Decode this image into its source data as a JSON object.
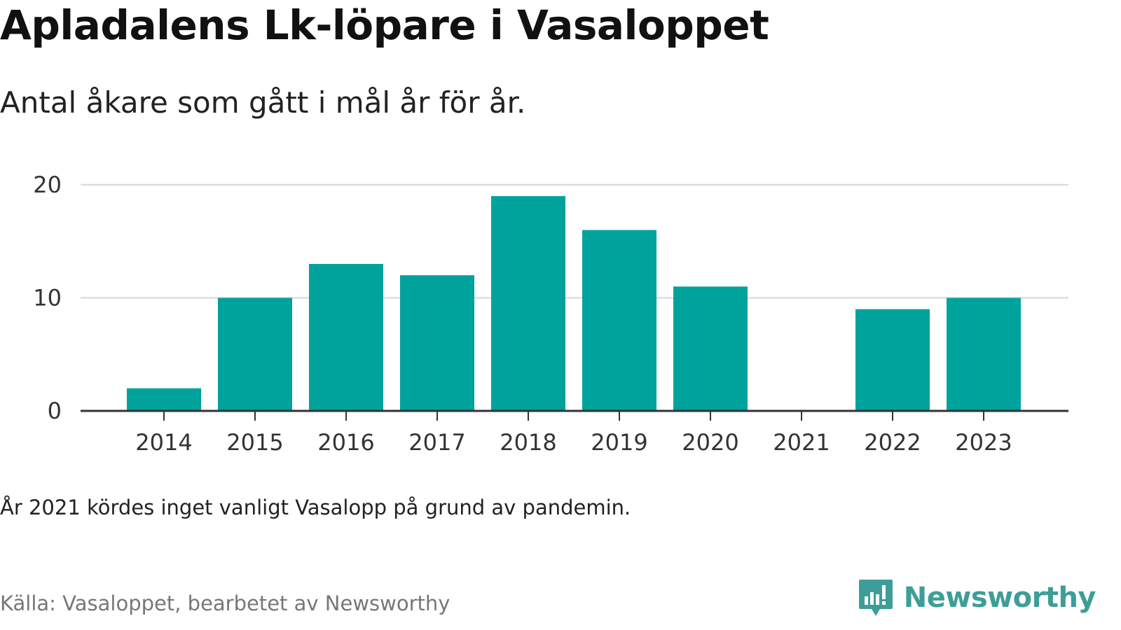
{
  "header": {
    "title": "Apladalens Lk-löpare i Vasaloppet",
    "subtitle": "Antal åkare som gått i mål år för år."
  },
  "footer": {
    "note": "År 2021 kördes inget vanligt Vasalopp på grund av pandemin.",
    "source": "Källa: Vasaloppet, bearbetet av Newsworthy",
    "brand": "Newsworthy",
    "brand_icon": "bar-chart-speech-bubble-icon"
  },
  "colors": {
    "bar": "#00a39b",
    "grid": "#dddddd",
    "axis": "#333333",
    "brand": "#3d9e98"
  },
  "chart_data": {
    "type": "bar",
    "categories": [
      "2014",
      "2015",
      "2016",
      "2017",
      "2018",
      "2019",
      "2020",
      "2021",
      "2022",
      "2023"
    ],
    "values": [
      2,
      10,
      13,
      12,
      19,
      16,
      11,
      0,
      9,
      10
    ],
    "title": "Apladalens Lk-löpare i Vasaloppet",
    "subtitle": "Antal åkare som gått i mål år för år.",
    "xlabel": "",
    "ylabel": "",
    "ylim": [
      0,
      20
    ],
    "yticks": [
      0,
      10,
      20
    ],
    "grid": true,
    "legend": "none"
  }
}
